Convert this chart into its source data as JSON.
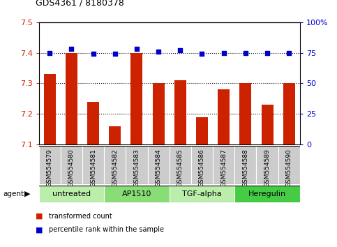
{
  "title": "GDS4361 / 8180378",
  "samples": [
    "GSM554579",
    "GSM554580",
    "GSM554581",
    "GSM554582",
    "GSM554583",
    "GSM554584",
    "GSM554585",
    "GSM554586",
    "GSM554587",
    "GSM554588",
    "GSM554589",
    "GSM554590"
  ],
  "red_values": [
    7.33,
    7.4,
    7.24,
    7.16,
    7.4,
    7.3,
    7.31,
    7.19,
    7.28,
    7.3,
    7.23,
    7.3
  ],
  "blue_values": [
    75,
    78,
    74,
    74,
    78,
    76,
    77,
    74,
    75,
    75,
    75,
    75
  ],
  "ylim_left": [
    7.1,
    7.5
  ],
  "ylim_right": [
    0,
    100
  ],
  "yticks_left": [
    7.1,
    7.2,
    7.3,
    7.4,
    7.5
  ],
  "yticks_right": [
    0,
    25,
    50,
    75,
    100
  ],
  "ytick_labels_right": [
    "0",
    "25",
    "50",
    "75",
    "100%"
  ],
  "groups": [
    {
      "label": "untreated",
      "start": 0,
      "end": 3,
      "color": "#bbeeaa"
    },
    {
      "label": "AP1510",
      "start": 3,
      "end": 6,
      "color": "#88dd77"
    },
    {
      "label": "TGF-alpha",
      "start": 6,
      "end": 9,
      "color": "#bbeeaa"
    },
    {
      "label": "Heregulin",
      "start": 9,
      "end": 12,
      "color": "#44cc44"
    }
  ],
  "bar_color": "#cc2200",
  "dot_color": "#0000cc",
  "grid_color": "#000000",
  "left_tick_color": "#cc2200",
  "right_tick_color": "#0000cc",
  "bg_color": "#ffffff",
  "tick_area_color": "#cccccc",
  "legend_items": [
    {
      "label": "transformed count",
      "color": "#cc2200"
    },
    {
      "label": "percentile rank within the sample",
      "color": "#0000cc"
    }
  ]
}
